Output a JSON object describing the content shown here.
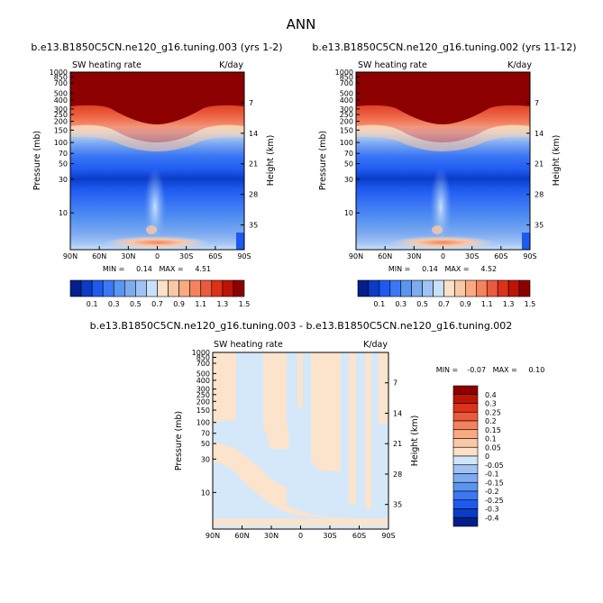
{
  "title": "ANN",
  "chart_data": [
    {
      "type": "heatmap",
      "title": "b.e13.B1850C5CN.ne120_g16.tuning.003 (yrs 1-2)",
      "variable": "SW heating rate",
      "units": "K/day",
      "ylabel": "Pressure (mb)",
      "ylabel_right": "Height (km)",
      "x_ticks": [
        "90N",
        "60N",
        "30N",
        "0",
        "30S",
        "60S",
        "90S"
      ],
      "y_ticks": [
        "10",
        "30",
        "50",
        "70",
        "100",
        "150",
        "200",
        "250",
        "300",
        "400",
        "500",
        "700",
        "850",
        "1000"
      ],
      "height_ticks": [
        "35",
        "28",
        "21",
        "14",
        "7"
      ],
      "log_pressure_axis": true,
      "ylim_mb": [
        1000,
        3
      ],
      "stats": "MIN =     0.14   MAX =     4.51",
      "colorbar": {
        "labels": [
          "0.1",
          "0.3",
          "0.5",
          "0.7",
          "0.9",
          "1.1",
          "1.3",
          "1.5"
        ],
        "colors": [
          "#051e8c",
          "#0a3cc8",
          "#1e5af0",
          "#3c78f5",
          "#5a96f0",
          "#7eaaf0",
          "#a0c3f5",
          "#c8e1fa",
          "#fae1c8",
          "#fac8a5",
          "#faaa82",
          "#f5825f",
          "#eb5a3c",
          "#dc3219",
          "#be1405",
          "#8c0000"
        ]
      },
      "grid": false
    },
    {
      "type": "heatmap",
      "title": "b.e13.B1850C5CN.ne120_g16.tuning.002 (yrs 11-12)",
      "variable": "SW heating rate",
      "units": "K/day",
      "ylabel": "Pressure (mb)",
      "ylabel_right": "Height (km)",
      "x_ticks": [
        "90N",
        "60N",
        "30N",
        "0",
        "30S",
        "60S",
        "90S"
      ],
      "y_ticks": [
        "10",
        "30",
        "50",
        "70",
        "100",
        "150",
        "200",
        "250",
        "300",
        "400",
        "500",
        "700",
        "850",
        "1000"
      ],
      "height_ticks": [
        "35",
        "28",
        "21",
        "14",
        "7"
      ],
      "log_pressure_axis": true,
      "ylim_mb": [
        1000,
        3
      ],
      "stats": "MIN =     0.14   MAX =     4.52",
      "grid": false
    },
    {
      "type": "heatmap",
      "title": "b.e13.B1850C5CN.ne120_g16.tuning.003 - b.e13.B1850C5CN.ne120_g16.tuning.002",
      "variable": "SW heating rate",
      "units": "K/day",
      "ylabel": "Pressure (mb)",
      "ylabel_right": "Height (km)",
      "x_ticks": [
        "90N",
        "60N",
        "30N",
        "0",
        "30S",
        "60S",
        "90S"
      ],
      "y_ticks": [
        "10",
        "30",
        "50",
        "70",
        "100",
        "150",
        "200",
        "250",
        "300",
        "400",
        "500",
        "700",
        "850",
        "1000"
      ],
      "height_ticks": [
        "35",
        "28",
        "21",
        "14",
        "7"
      ],
      "log_pressure_axis": true,
      "ylim_mb": [
        1000,
        3
      ],
      "stats": "MIN =    -0.07   MAX =     0.10",
      "colorbar": {
        "labels": [
          "0.4",
          "0.3",
          "0.25",
          "0.2",
          "0.15",
          "0.1",
          "0.05",
          "0",
          "-0.05",
          "-0.1",
          "-0.15",
          "-0.2",
          "-0.25",
          "-0.3",
          "-0.4"
        ],
        "colors": [
          "#8c0000",
          "#be1405",
          "#dc3219",
          "#eb5a3c",
          "#f5825f",
          "#faaa82",
          "#fac8a5",
          "#fae1c8",
          "#d2e6fa",
          "#a0c3f5",
          "#7eaaf0",
          "#5a96f0",
          "#3c78f5",
          "#1e5af0",
          "#0a3cc8",
          "#051e8c"
        ]
      },
      "field_colors": {
        "positive": "#fbe3cc",
        "negative": "#d4e8fa"
      },
      "grid": false
    }
  ]
}
